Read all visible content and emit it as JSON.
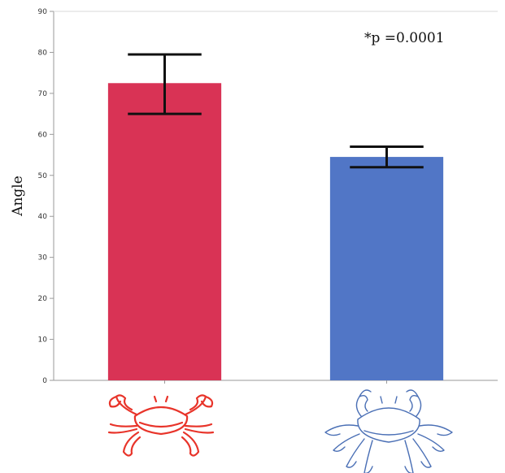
{
  "chart_data": {
    "type": "bar",
    "categories": [
      "red crab",
      "blue crab"
    ],
    "values": [
      72.5,
      54.5
    ],
    "error_low": [
      65,
      52
    ],
    "error_high": [
      79.5,
      57
    ],
    "colors": [
      "#d93355",
      "#5176c6"
    ],
    "ylabel": "Angle",
    "ylim": [
      0,
      90
    ],
    "yticks": [
      "0",
      "10",
      "20",
      "30",
      "40",
      "50",
      "60",
      "70",
      "80",
      "90"
    ],
    "annotation": "*p =0.0001",
    "grid": false,
    "category_icons": [
      "crab-outline-red",
      "crab-outline-blue"
    ],
    "icon_colors": [
      "#e8342a",
      "#4a6fb5"
    ]
  }
}
